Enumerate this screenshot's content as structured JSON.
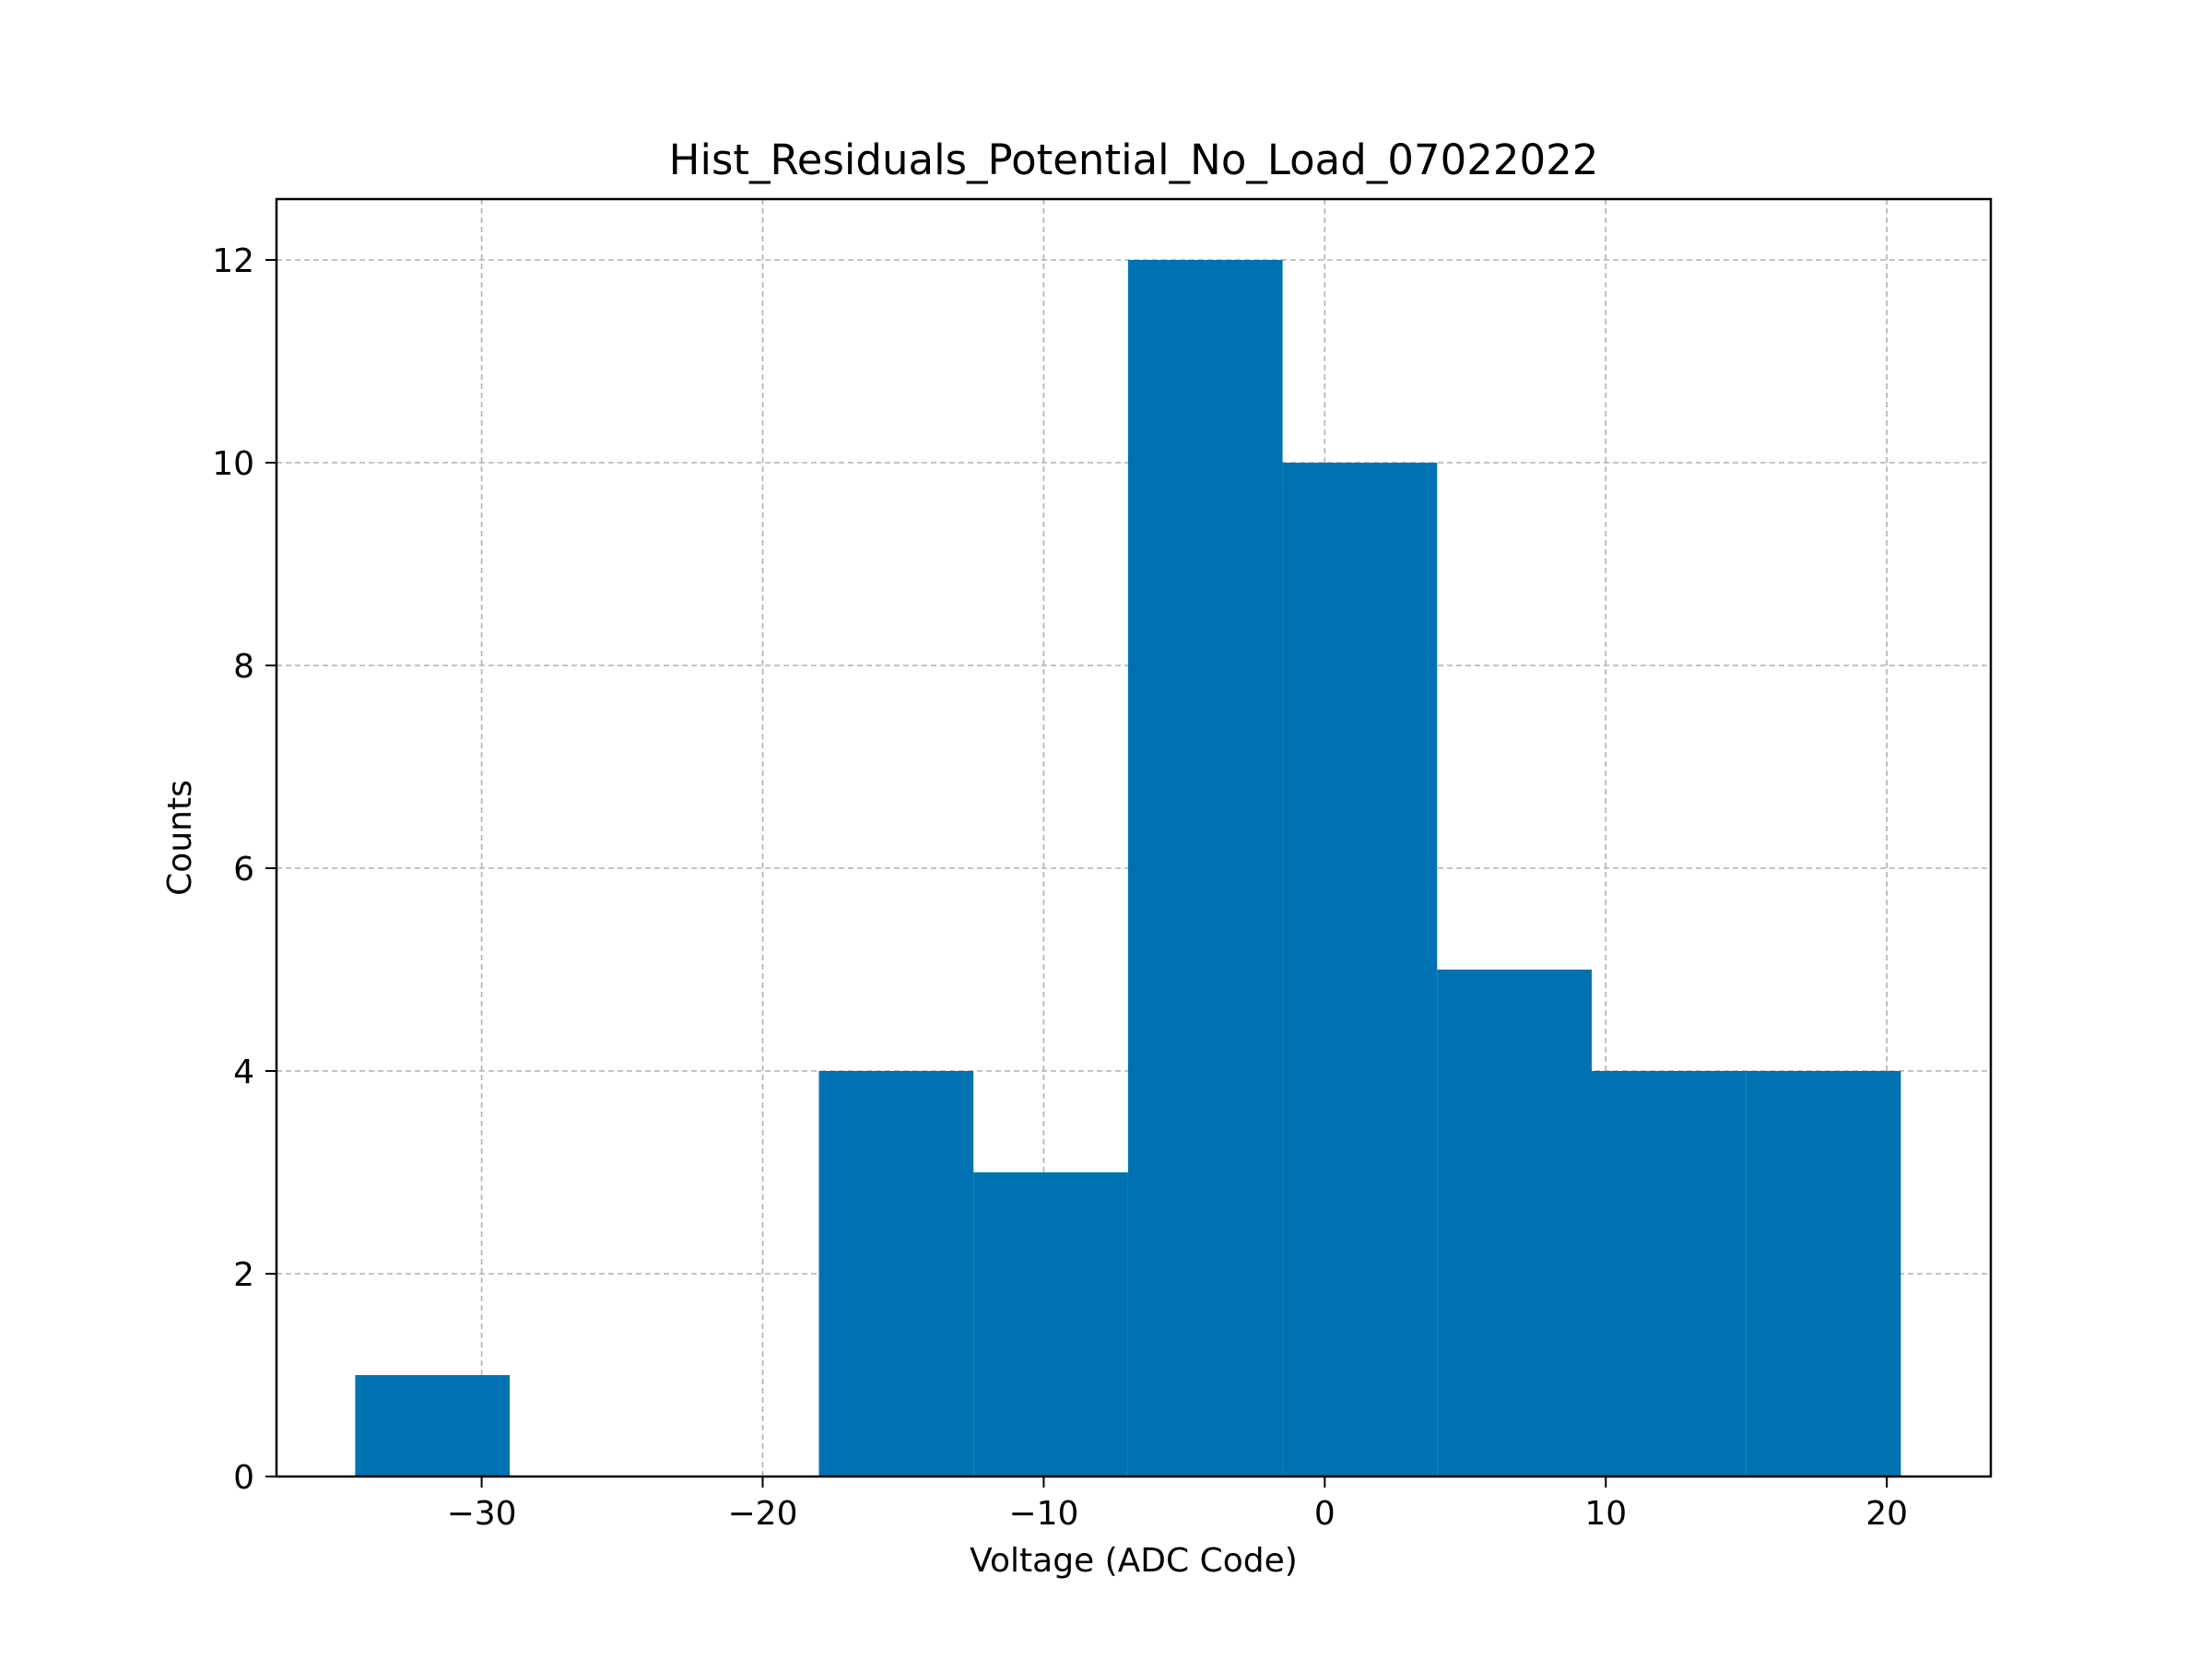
{
  "chart_data": {
    "type": "bar",
    "title": "Hist_Residuals_Potential_No_Load_07022022",
    "xlabel": "Voltage (ADC Code)",
    "ylabel": "Counts",
    "xlim": [
      -37.3,
      23.7
    ],
    "ylim": [
      0,
      12.6
    ],
    "grid": true,
    "bar_color": "#0072b2",
    "bin_edges": [
      -34.5,
      -29.0,
      -23.5,
      -18.0,
      -12.5,
      -7.0,
      -1.5,
      4.0,
      9.5,
      15.0,
      20.5
    ],
    "values": [
      1,
      0,
      0,
      4,
      3,
      12,
      10,
      5,
      4,
      4
    ],
    "xticks": [
      -30,
      -20,
      -10,
      0,
      10,
      20
    ],
    "xtick_labels": [
      "−30",
      "−20",
      "−10",
      "0",
      "10",
      "20"
    ],
    "yticks": [
      0,
      2,
      4,
      6,
      8,
      10,
      12
    ],
    "ytick_labels": [
      "0",
      "2",
      "4",
      "6",
      "8",
      "10",
      "12"
    ]
  }
}
